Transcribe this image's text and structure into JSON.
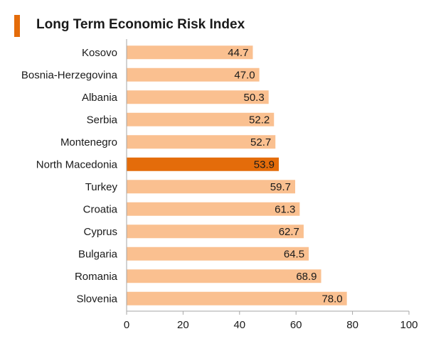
{
  "title": "Long Term Economic Risk Index",
  "colors": {
    "accent": "#e46c0a",
    "bar": "#fac090",
    "highlight": "#e46c0a",
    "axis": "#a6a6a6"
  },
  "chart_data": {
    "type": "bar",
    "orientation": "horizontal",
    "title": "Long Term Economic Risk Index",
    "categories": [
      "Kosovo",
      "Bosnia-Herzegovina",
      "Albania",
      "Serbia",
      "Montenegro",
      "North Macedonia",
      "Turkey",
      "Croatia",
      "Cyprus",
      "Bulgaria",
      "Romania",
      "Slovenia"
    ],
    "values": [
      44.7,
      47.0,
      50.3,
      52.2,
      52.7,
      53.9,
      59.7,
      61.3,
      62.7,
      64.5,
      68.9,
      78.0
    ],
    "value_labels": [
      "44.7",
      "47.0",
      "50.3",
      "52.2",
      "52.7",
      "53.9",
      "59.7",
      "61.3",
      "62.7",
      "64.5",
      "68.9",
      "78.0"
    ],
    "highlight_category": "North Macedonia",
    "xlim": [
      0,
      100
    ],
    "xticks": [
      0,
      20,
      40,
      60,
      80,
      100
    ],
    "xtick_labels": [
      "0",
      "20",
      "40",
      "60",
      "80",
      "100"
    ],
    "grid": false,
    "legend": "none"
  }
}
